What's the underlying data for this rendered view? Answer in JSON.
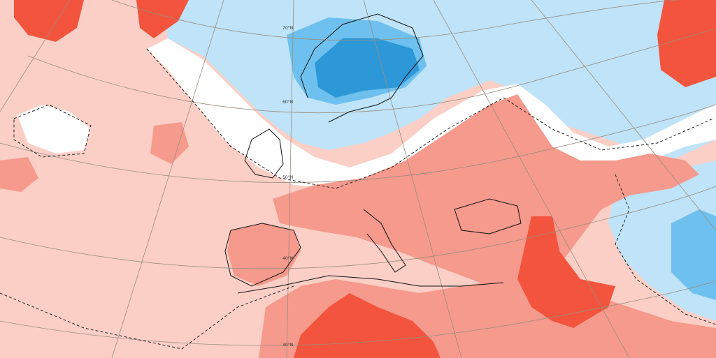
{
  "map": {
    "latitude_labels": [
      "70°N",
      "60°N",
      "50°N",
      "40°N",
      "30°N"
    ],
    "palette": {
      "strong_warm": "#f2543d",
      "warm": "#f59a8c",
      "light_warm": "#fbcfc6",
      "neutral": "#ffffff",
      "light_cold": "#bfe3f8",
      "cold": "#6ec1ee",
      "strong_cold": "#2d98d8",
      "coastline": "#111111",
      "graticule": "#9a8c7e"
    }
  }
}
